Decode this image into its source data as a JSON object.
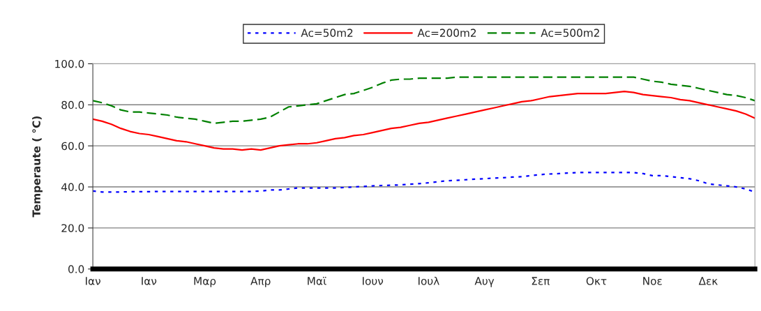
{
  "chart_data": {
    "type": "line",
    "ylabel": "Temperaute ( °C)",
    "categories": [
      "Ιαν",
      null,
      null,
      null,
      null,
      null,
      "Ιαν",
      null,
      null,
      null,
      null,
      null,
      "Μαρ",
      null,
      null,
      null,
      null,
      null,
      "Απρ",
      null,
      null,
      null,
      null,
      null,
      "Μαϊ",
      null,
      null,
      null,
      null,
      null,
      "Ιουν",
      null,
      null,
      null,
      null,
      null,
      "Ιουλ",
      null,
      null,
      null,
      null,
      null,
      "Αυγ",
      null,
      null,
      null,
      null,
      null,
      "Σεπ",
      null,
      null,
      null,
      null,
      null,
      "Οκτ",
      null,
      null,
      null,
      null,
      null,
      "Νοε",
      null,
      null,
      null,
      null,
      null,
      "Δεκ",
      null,
      null,
      null,
      null,
      null
    ],
    "series": [
      {
        "name": "Ac=50m2",
        "color": "#0000ff",
        "line_style": "dotted",
        "values": [
          38,
          37.5,
          37.5,
          37.5,
          37.7,
          37.7,
          37.7,
          37.8,
          37.8,
          37.8,
          37.8,
          37.8,
          37.8,
          37.8,
          37.8,
          37.8,
          37.8,
          37.8,
          38,
          38.5,
          38.5,
          39,
          39.5,
          39.5,
          39.5,
          39.5,
          39.5,
          39.7,
          40,
          40.2,
          40.5,
          40.7,
          40.8,
          41,
          41.3,
          41.6,
          42,
          42.5,
          43,
          43.2,
          43.5,
          43.8,
          44,
          44.3,
          44.5,
          44.8,
          45,
          45.5,
          46,
          46.3,
          46.5,
          46.8,
          47,
          47,
          47,
          47,
          47,
          47,
          47,
          46.5,
          45.5,
          45.5,
          45,
          44.5,
          44,
          43,
          41.5,
          41,
          40.5,
          40,
          39,
          37.5
        ]
      },
      {
        "name": "Ac=200m2",
        "color": "#ff0000",
        "line_style": "solid",
        "values": [
          73,
          72,
          70.5,
          68.5,
          67,
          66,
          65.5,
          64.5,
          63.5,
          62.5,
          62,
          61,
          60,
          59,
          58.5,
          58.5,
          58,
          58.5,
          58,
          59,
          60,
          60.5,
          61,
          61,
          61.5,
          62.5,
          63.5,
          64,
          65,
          65.5,
          66.5,
          67.5,
          68.5,
          69,
          70,
          71,
          71.5,
          72.5,
          73.5,
          74.5,
          75.5,
          76.5,
          77.5,
          78.5,
          79.5,
          80.5,
          81.5,
          82,
          83,
          84,
          84.5,
          85,
          85.5,
          85.5,
          85.5,
          85.5,
          86,
          86.5,
          86,
          85,
          84.5,
          84,
          83.5,
          82.5,
          82,
          81,
          80,
          79,
          78,
          77,
          75.5,
          73.5
        ]
      },
      {
        "name": "Ac=500m2",
        "color": "#008000",
        "line_style": "dashed",
        "values": [
          82,
          81,
          79.5,
          77.5,
          76.5,
          76.5,
          76,
          75.5,
          75,
          74,
          73.5,
          73,
          72,
          71,
          71.5,
          72,
          72,
          72.5,
          73,
          74,
          76.5,
          79,
          79.5,
          80,
          80.5,
          82,
          83.5,
          85,
          85.5,
          87,
          88.5,
          90.5,
          92,
          92.5,
          92.5,
          93,
          93,
          93,
          93,
          93.5,
          93.5,
          93.5,
          93.5,
          93.5,
          93.5,
          93.5,
          93.5,
          93.5,
          93.5,
          93.5,
          93.5,
          93.5,
          93.5,
          93.5,
          93.5,
          93.5,
          93.5,
          93.5,
          93.5,
          92.5,
          91.5,
          91,
          90,
          89.5,
          89,
          88,
          87,
          86,
          85,
          84.5,
          83.5,
          82
        ]
      }
    ],
    "ylim": [
      0,
      100
    ],
    "yticks": [
      {
        "value": 0,
        "label": "0.0"
      },
      {
        "value": 20,
        "label": "20.0"
      },
      {
        "value": 40,
        "label": "40.0"
      },
      {
        "value": 60,
        "label": "60.0"
      },
      {
        "value": 80,
        "label": "80.0"
      },
      {
        "value": 100,
        "label": "100.0"
      }
    ],
    "grid": "y",
    "legend": "top",
    "marker": "none"
  }
}
